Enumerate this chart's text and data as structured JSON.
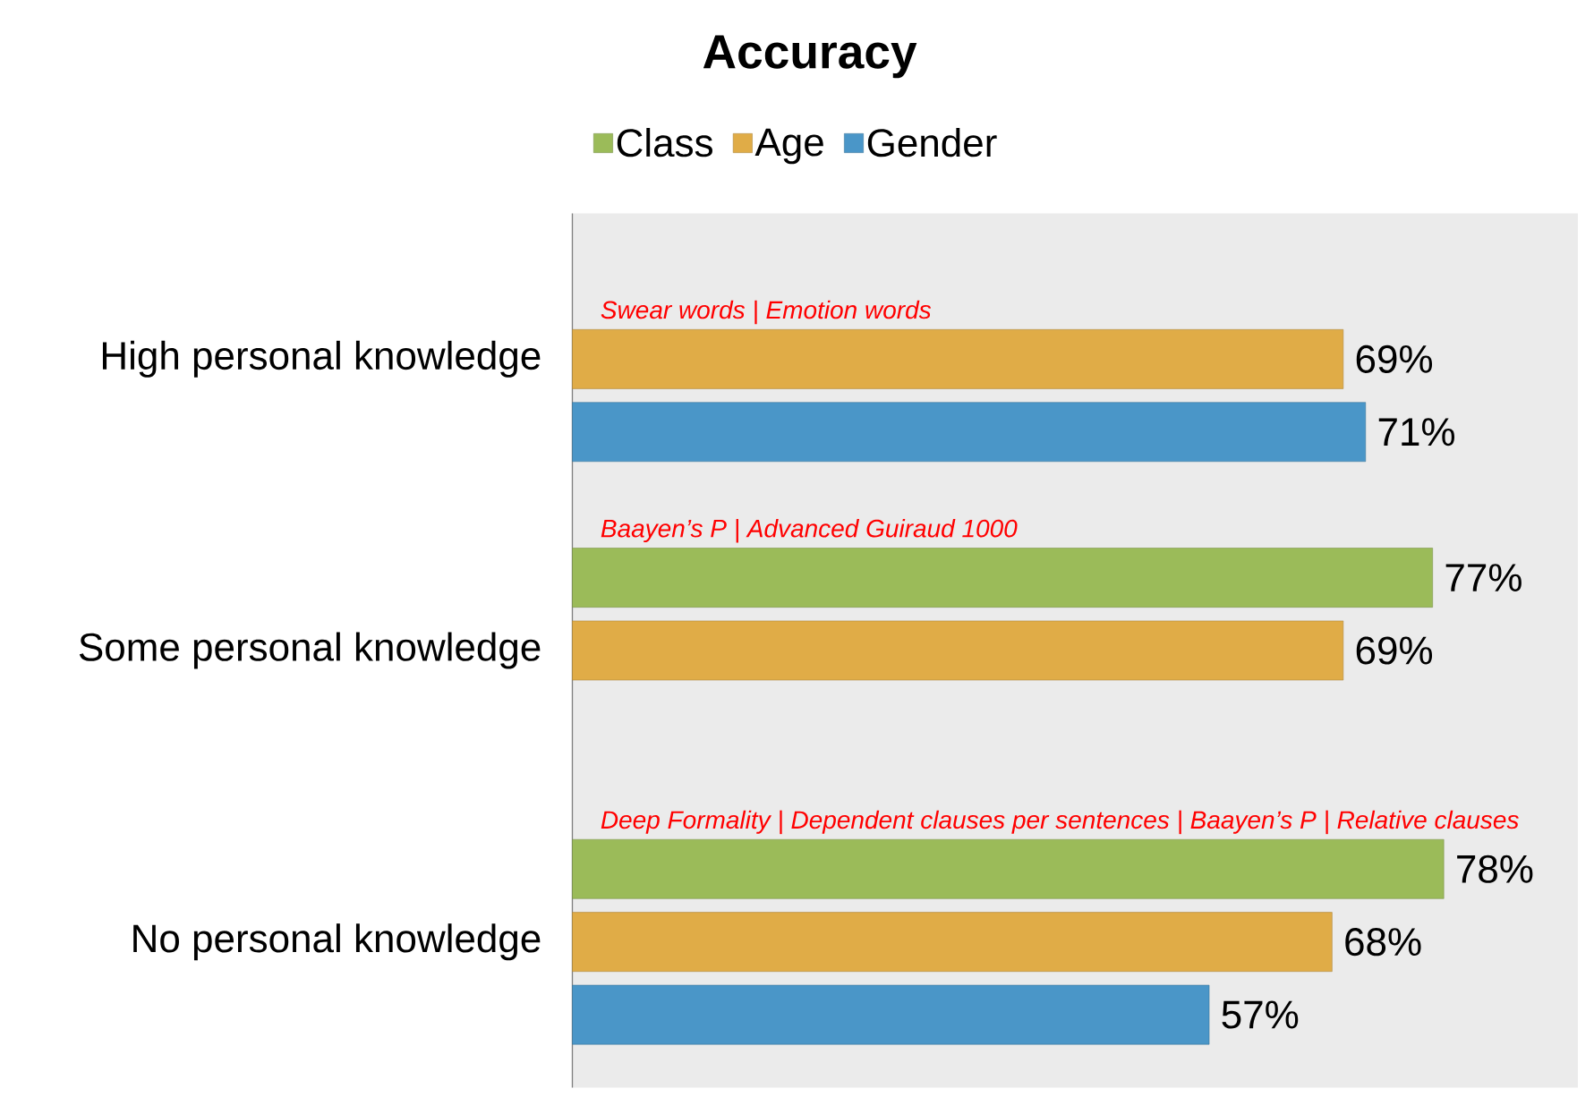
{
  "chart_data": {
    "type": "bar",
    "orientation": "horizontal",
    "title": "Accuracy",
    "categories": [
      "High personal knowledge",
      "Some personal knowledge",
      "No personal knowledge"
    ],
    "series": [
      {
        "name": "Class",
        "color": "#9bbb59",
        "values": [
          null,
          77,
          78
        ],
        "value_labels": [
          null,
          "77%",
          "78%"
        ]
      },
      {
        "name": "Age",
        "color": "#e0ac47",
        "values": [
          69,
          69,
          68
        ],
        "value_labels": [
          "69%",
          "69%",
          "68%"
        ]
      },
      {
        "name": "Gender",
        "color": "#4a96c8",
        "values": [
          71,
          null,
          57
        ],
        "value_labels": [
          "71%",
          null,
          "57%"
        ]
      }
    ],
    "xlim": [
      0,
      90
    ],
    "annotations": [
      "Swear words | Emotion words",
      "Baayen’s P | Advanced Guiraud 1000",
      "Deep Formality | Dependent clauses per sentences | Baayen’s P | Relative clauses"
    ],
    "legend": "top"
  }
}
